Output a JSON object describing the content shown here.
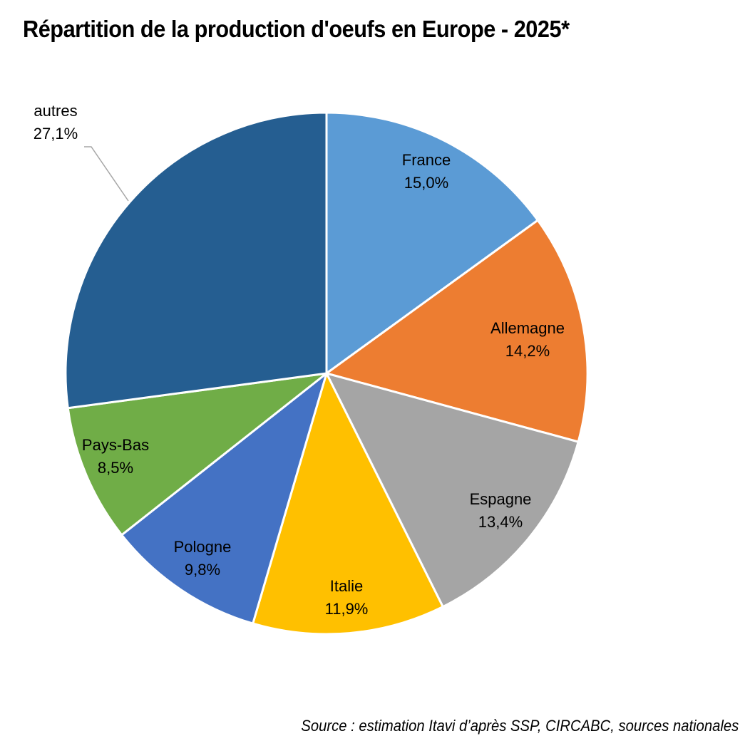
{
  "chart_data": {
    "type": "pie",
    "title": "Répartition de la production d'oeufs en Europe -  2025*",
    "source": "Source : estimation Itavi d’après SSP, CIRCABC, sources nationales",
    "slices": [
      {
        "label": "France",
        "value": 15.0,
        "value_label": "15,0%",
        "color": "#5b9bd5"
      },
      {
        "label": "Allemagne",
        "value": 14.2,
        "value_label": "14,2%",
        "color": "#ed7d31"
      },
      {
        "label": "Espagne",
        "value": 13.4,
        "value_label": "13,4%",
        "color": "#a5a5a5"
      },
      {
        "label": "Italie",
        "value": 11.9,
        "value_label": "11,9%",
        "color": "#ffc000"
      },
      {
        "label": "Pologne",
        "value": 9.8,
        "value_label": "9,8%",
        "color": "#4472c4"
      },
      {
        "label": "Pays-Bas",
        "value": 8.5,
        "value_label": "8,5%",
        "color": "#70ad47"
      },
      {
        "label": "autres",
        "value": 27.1,
        "value_label": "27,1%",
        "color": "#255e91"
      }
    ]
  }
}
